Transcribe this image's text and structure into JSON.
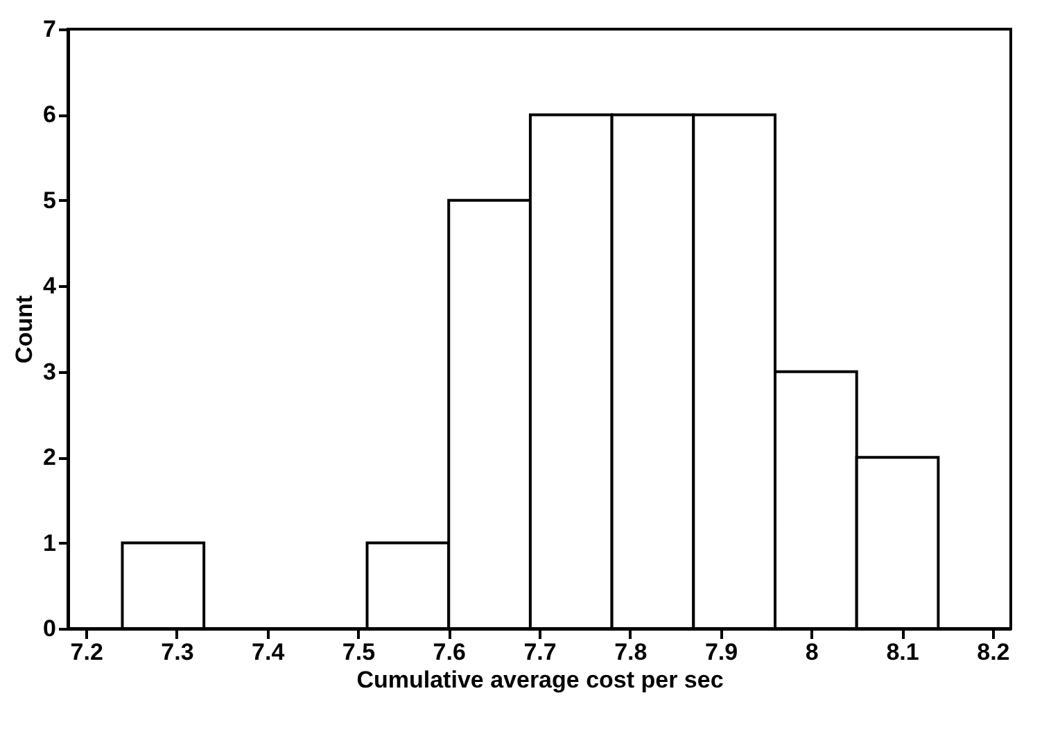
{
  "chart_data": {
    "type": "histogram",
    "xlabel": "Cumulative average cost per sec",
    "ylabel": "Count",
    "bins": [
      7.24,
      7.33,
      7.42,
      7.51,
      7.6,
      7.69,
      7.78,
      7.87,
      7.96,
      8.05,
      8.14
    ],
    "values": [
      1,
      0,
      0,
      1,
      5,
      6,
      6,
      6,
      3,
      2
    ],
    "color": "#ffffff",
    "xlim": [
      7.18,
      8.22
    ],
    "xticks": [
      7.2,
      7.3,
      7.4,
      7.5,
      7.6,
      7.7,
      7.8,
      7.9,
      8,
      8.1,
      8.2
    ],
    "ylim": [
      0,
      7
    ],
    "yticks": [
      0,
      1,
      2,
      3,
      4,
      5,
      6,
      7
    ]
  }
}
